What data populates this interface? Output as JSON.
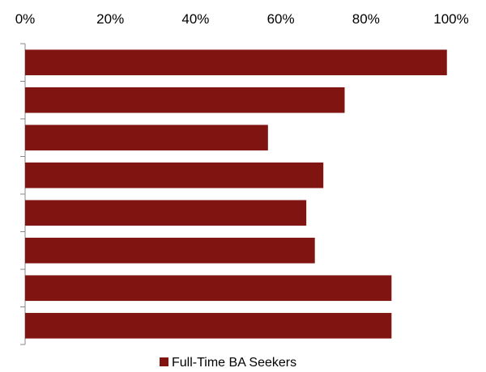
{
  "chart_data": {
    "type": "bar",
    "orientation": "horizontal",
    "x_axis_position": "top",
    "xlim": [
      0,
      100
    ],
    "x_ticks": [
      0,
      20,
      40,
      60,
      80,
      100
    ],
    "x_tick_labels": [
      "0%",
      "20%",
      "40%",
      "60%",
      "80%",
      "100%"
    ],
    "categories": [
      "",
      "",
      "",
      "",
      "",
      "",
      "",
      ""
    ],
    "series": [
      {
        "name": "Full-Time BA Seekers",
        "color": "#7f1410",
        "values": [
          99,
          75,
          57,
          70,
          66,
          68,
          86,
          86
        ]
      }
    ],
    "grid": false,
    "legend_position": "bottom"
  }
}
